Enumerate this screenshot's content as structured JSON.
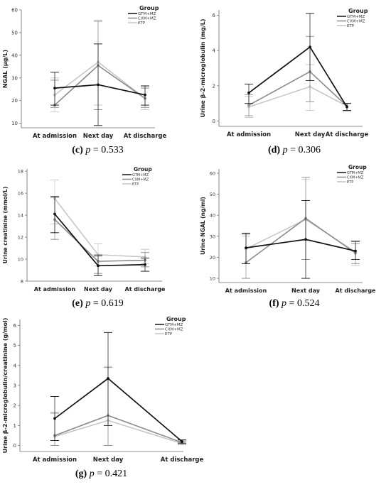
{
  "colors": {
    "GTM+MZ": "#111111",
    "CXM+MZ": "#8a8a8a",
    "ETP": "#c4c4c4"
  },
  "chart_data": [
    {
      "id": "c",
      "type": "line",
      "caption_letter": "(c)",
      "caption_p": "p",
      "caption_rest": " = 0.533",
      "ylabel": "NGAL (μg/L)",
      "legend_title": "Group",
      "categories": [
        "At admission",
        "Next day",
        "At discharge"
      ],
      "ylim": [
        8,
        60
      ],
      "yticks": [
        10,
        20,
        30,
        40,
        50,
        60
      ],
      "series": [
        {
          "name": "GTM+MZ",
          "values": [
            25.5,
            27,
            22.5
          ],
          "lower": [
            18,
            9,
            18
          ],
          "upper": [
            32.5,
            45,
            26.5
          ]
        },
        {
          "name": "CXM+MZ",
          "values": [
            18,
            35.5,
            21
          ],
          "lower": [
            17,
            16,
            17
          ],
          "upper": [
            29,
            55,
            25.5
          ]
        },
        {
          "name": "ETP",
          "values": [
            22.5,
            37,
            21
          ],
          "lower": [
            15,
            18,
            16
          ],
          "upper": [
            30,
            55.5,
            26
          ]
        }
      ]
    },
    {
      "id": "d",
      "type": "line",
      "caption_letter": "(d)",
      "caption_p": "p",
      "caption_rest": " = 0.306",
      "ylabel": "Urine β-2-microglobulin (mg/L)",
      "legend_title": "Group",
      "categories": [
        "At admission",
        "Next day",
        "At discharge"
      ],
      "ylim": [
        -0.3,
        6.3
      ],
      "yticks": [
        0,
        2,
        4,
        6
      ],
      "series": [
        {
          "name": "GTM+MZ",
          "values": [
            1.6,
            4.2,
            0.8
          ],
          "lower": [
            1.0,
            2.3,
            0.6
          ],
          "upper": [
            2.1,
            6.1,
            1.0
          ]
        },
        {
          "name": "CXM+MZ",
          "values": [
            0.9,
            2.8,
            0.85
          ],
          "lower": [
            0.3,
            1.1,
            0.6
          ],
          "upper": [
            1.5,
            4.8,
            1.0
          ]
        },
        {
          "name": "ETP",
          "values": [
            0.8,
            1.95,
            0.85
          ],
          "lower": [
            0.2,
            0.6,
            0.55
          ],
          "upper": [
            1.4,
            3.2,
            1.0
          ]
        }
      ]
    },
    {
      "id": "e",
      "type": "line",
      "caption_letter": "(e)",
      "caption_p": "p",
      "caption_rest": " = 0.619",
      "ylabel": "Urine creatinine (mmol/L)",
      "legend_title": "Group",
      "categories": [
        "At admission",
        "Next day",
        "At discharge"
      ],
      "ylim": [
        8,
        18.2
      ],
      "yticks": [
        8,
        10,
        12,
        14,
        16,
        18
      ],
      "series": [
        {
          "name": "GTM+MZ",
          "values": [
            14.1,
            9.4,
            9.5
          ],
          "lower": [
            12.4,
            8.5,
            8.9
          ],
          "upper": [
            15.7,
            10.3,
            10.1
          ]
        },
        {
          "name": "CXM+MZ",
          "values": [
            13.6,
            9.8,
            9.9
          ],
          "lower": [
            11.8,
            8.7,
            9.3
          ],
          "upper": [
            15.6,
            10.4,
            10.6
          ]
        },
        {
          "name": "ETP",
          "values": [
            15.5,
            10.4,
            10.2
          ],
          "lower": [
            13.2,
            9.4,
            9.6
          ],
          "upper": [
            17.2,
            11.4,
            10.9
          ]
        }
      ]
    },
    {
      "id": "f",
      "type": "line",
      "caption_letter": "(f)",
      "caption_p": "p",
      "caption_rest": " = 0.524",
      "ylabel": "Urine NGAL (ng/ml)",
      "legend_title": "Group",
      "categories": [
        "At admission",
        "Next day",
        "At discharge"
      ],
      "ylim": [
        8,
        62
      ],
      "yticks": [
        10,
        20,
        30,
        40,
        50,
        60
      ],
      "series": [
        {
          "name": "GTM+MZ",
          "values": [
            24.5,
            28.5,
            23
          ],
          "lower": [
            17,
            10,
            19
          ],
          "upper": [
            31.5,
            47,
            27.5
          ]
        },
        {
          "name": "CXM+MZ",
          "values": [
            17.5,
            38.5,
            22
          ],
          "lower": [
            10,
            19,
            17
          ],
          "upper": [
            31,
            58,
            26.5
          ]
        },
        {
          "name": "ETP",
          "values": [
            24,
            38,
            22.5
          ],
          "lower": [
            17,
            19,
            16
          ],
          "upper": [
            30,
            57,
            28
          ]
        }
      ]
    },
    {
      "id": "g",
      "type": "line",
      "caption_letter": "(g)",
      "caption_p": "p",
      "caption_rest": " = 0.421",
      "ylabel": "Urine β-2-microglobulin/creatinine (g/mol)",
      "legend_title": "Group",
      "categories": [
        "At admission",
        "Next day",
        "At discharge"
      ],
      "ylim": [
        -0.3,
        6.3
      ],
      "yticks": [
        0,
        1,
        2,
        3,
        4,
        5,
        6
      ],
      "series": [
        {
          "name": "GTM+MZ",
          "values": [
            1.35,
            3.35,
            0.2
          ],
          "lower": [
            0.25,
            1.0,
            0.12
          ],
          "upper": [
            2.45,
            5.65,
            0.28
          ]
        },
        {
          "name": "CXM+MZ",
          "values": [
            0.5,
            1.5,
            0.15
          ],
          "lower": [
            0,
            0,
            0.08
          ],
          "upper": [
            1.65,
            3.9,
            0.23
          ]
        },
        {
          "name": "ETP",
          "values": [
            0.45,
            1.25,
            0.1
          ],
          "lower": [
            0,
            0,
            0.04
          ],
          "upper": [
            1.6,
            3.95,
            0.18
          ]
        }
      ]
    }
  ]
}
